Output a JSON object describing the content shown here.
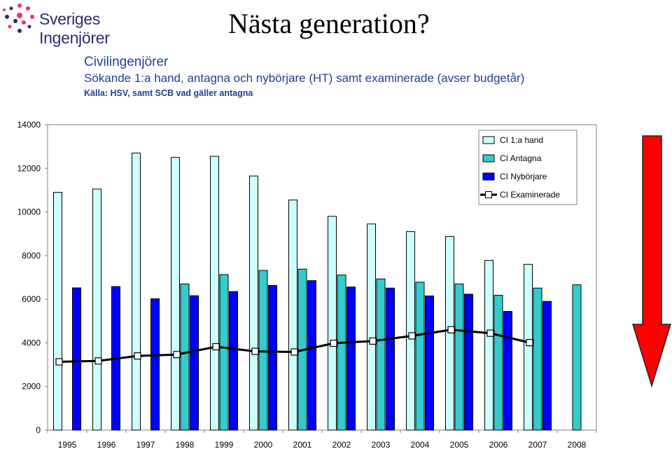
{
  "logo": {
    "text": "Sveriges Ingenjörer"
  },
  "slide_title": "Nästa generation?",
  "heading": "Civilingenjörer",
  "subtitle": "Sökande 1:a hand, antagna och nybörjare (HT) samt examinerade (avser budgetår)",
  "source": "Källa: HSV, samt SCB vad gäller antagna",
  "colors": {
    "sokande": "#ccffff",
    "antagna": "#33cccc",
    "nyborjare": "#0000ff",
    "examinerade": "#000000",
    "arrow": "#ff0000",
    "text": "#1e3f93"
  },
  "chart_data": {
    "type": "bar",
    "categories": [
      "1995",
      "1996",
      "1997",
      "1998",
      "1999",
      "2000",
      "2001",
      "2002",
      "2003",
      "2004",
      "2005",
      "2006",
      "2007",
      "2008"
    ],
    "ylim": [
      0,
      14000
    ],
    "yticks": [
      0,
      2000,
      4000,
      6000,
      8000,
      10000,
      12000,
      14000
    ],
    "grid": false,
    "legend_position": "top-right",
    "series": [
      {
        "name": "CI 1:a hand",
        "kind": "bar",
        "color": "#ccffff",
        "values": [
          10900,
          11050,
          12700,
          12500,
          12550,
          11650,
          10550,
          9800,
          9450,
          9100,
          8880,
          7780,
          7600,
          null
        ]
      },
      {
        "name": "CI Antagna",
        "kind": "bar",
        "color": "#33cccc",
        "values": [
          null,
          null,
          null,
          6700,
          7130,
          7320,
          7380,
          7110,
          6930,
          6780,
          6700,
          6180,
          6510,
          6660
        ]
      },
      {
        "name": "CI Nybörjare",
        "kind": "bar",
        "color": "#0000ff",
        "values": [
          6520,
          6580,
          6020,
          6160,
          6350,
          6630,
          6850,
          6560,
          6510,
          6150,
          6230,
          5440,
          5900,
          null
        ]
      },
      {
        "name": "CI Examinerade",
        "kind": "line",
        "color": "#000000",
        "values": [
          3130,
          3170,
          3400,
          3460,
          3820,
          3610,
          3580,
          3980,
          4080,
          4320,
          4600,
          4440,
          4010,
          null
        ]
      }
    ]
  }
}
